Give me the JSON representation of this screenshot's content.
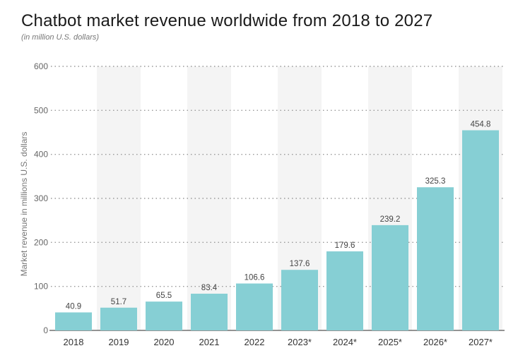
{
  "header": {
    "title": "Chatbot market revenue worldwide from 2018 to 2027",
    "subtitle": "(in million U.S. dollars)"
  },
  "chart_data": {
    "type": "bar",
    "title": "Chatbot market revenue worldwide from 2018 to 2027",
    "subtitle": "(in million U.S. dollars)",
    "xlabel": "",
    "ylabel": "Market revenue in millions U.S. dollars",
    "categories": [
      "2018",
      "2019",
      "2020",
      "2021",
      "2022",
      "2023*",
      "2024*",
      "2025*",
      "2026*",
      "2027*"
    ],
    "values": [
      40.9,
      51.7,
      65.5,
      83.4,
      106.6,
      137.6,
      179.6,
      239.2,
      325.3,
      454.8
    ],
    "value_labels": [
      "40.9",
      "51.7",
      "65.5",
      "83.4",
      "106.6",
      "137.6",
      "179.6",
      "239.2",
      "325.3",
      "454.8"
    ],
    "ylim": [
      0,
      600
    ],
    "yticks": [
      "0",
      "100",
      "200",
      "300",
      "400",
      "500",
      "600"
    ],
    "grid": true,
    "legend": "none",
    "colors": {
      "bar": "#86cfd4",
      "band": "#f4f4f4",
      "grid": "#999999",
      "axis": "#555555"
    }
  }
}
